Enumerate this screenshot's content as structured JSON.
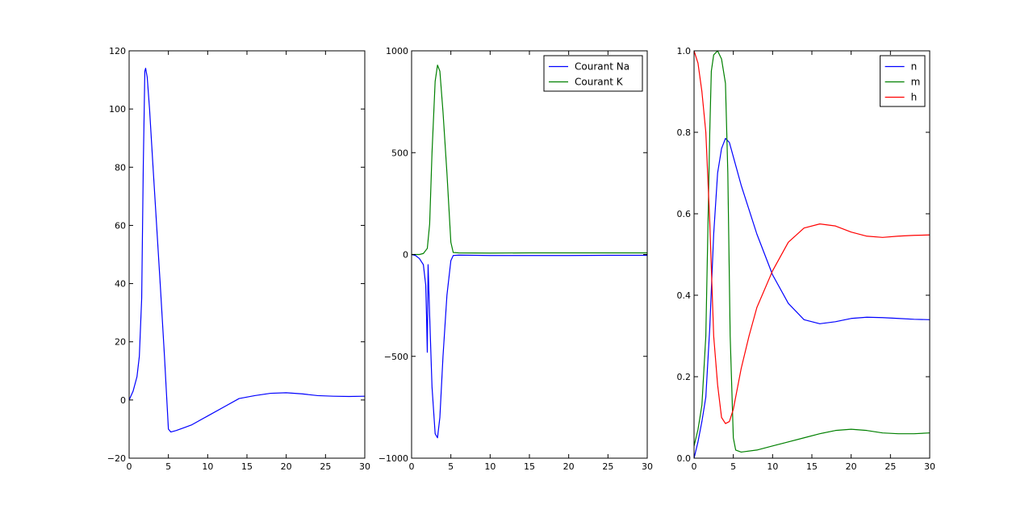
{
  "chart_data": [
    {
      "type": "line",
      "xlim": [
        0,
        30
      ],
      "ylim": [
        -20,
        120
      ],
      "xticks": [
        "0",
        "5",
        "10",
        "15",
        "20",
        "25",
        "30"
      ],
      "yticks": [
        "−20",
        "0",
        "20",
        "40",
        "60",
        "80",
        "100",
        "120"
      ],
      "legend": null,
      "series": [
        {
          "color": "#0000ff",
          "x": [
            0,
            0.5,
            1.0,
            1.3,
            1.6,
            1.8,
            2.0,
            2.1,
            2.3,
            2.6,
            3.0,
            3.5,
            4.0,
            4.5,
            4.8,
            5.0,
            5.3,
            6,
            7,
            8,
            10,
            12,
            14,
            16,
            18,
            20,
            22,
            24,
            26,
            28,
            30
          ],
          "y": [
            0,
            3,
            8,
            15,
            35,
            80,
            113,
            114,
            111,
            100,
            82,
            60,
            38,
            15,
            0,
            -10,
            -11,
            -10.5,
            -9.5,
            -8.5,
            -5.5,
            -2.5,
            0.5,
            1.5,
            2.3,
            2.5,
            2.1,
            1.5,
            1.3,
            1.2,
            1.3
          ]
        }
      ]
    },
    {
      "type": "line",
      "xlim": [
        0,
        30
      ],
      "ylim": [
        -1000,
        1000
      ],
      "xticks": [
        "0",
        "5",
        "10",
        "15",
        "20",
        "25",
        "30"
      ],
      "yticks": [
        "−1000",
        "−500",
        "0",
        "500",
        "1000"
      ],
      "legend": {
        "position": "top-right",
        "entries": [
          "Courant Na",
          "Courant K"
        ]
      },
      "series": [
        {
          "name": "Courant Na",
          "color": "#0000ff",
          "x": [
            0,
            0.5,
            1.0,
            1.5,
            1.8,
            1.9,
            2.0,
            2.1,
            2.3,
            2.6,
            3.0,
            3.3,
            3.6,
            4.0,
            4.5,
            5.0,
            5.3,
            6,
            10,
            15,
            20,
            25,
            30
          ],
          "y": [
            0,
            -5,
            -20,
            -50,
            -150,
            -300,
            -480,
            -50,
            -300,
            -650,
            -880,
            -900,
            -800,
            -500,
            -200,
            -30,
            -5,
            -3,
            -5,
            -5,
            -5,
            -4,
            -4
          ]
        },
        {
          "name": "Courant K",
          "color": "#008000",
          "x": [
            0,
            1,
            1.5,
            2.0,
            2.3,
            2.6,
            3.0,
            3.3,
            3.6,
            4.0,
            4.5,
            5.0,
            5.3,
            6,
            10,
            15,
            20,
            25,
            30
          ],
          "y": [
            0,
            0,
            5,
            30,
            150,
            500,
            850,
            930,
            900,
            700,
            400,
            60,
            10,
            8,
            7,
            8,
            8,
            8,
            8
          ]
        }
      ]
    },
    {
      "type": "line",
      "xlim": [
        0,
        30
      ],
      "ylim": [
        0.0,
        1.0
      ],
      "xticks": [
        "0",
        "5",
        "10",
        "15",
        "20",
        "25",
        "30"
      ],
      "yticks": [
        "0.0",
        "0.2",
        "0.4",
        "0.6",
        "0.8",
        "1.0"
      ],
      "legend": {
        "position": "top-right",
        "entries": [
          "n",
          "m",
          "h"
        ]
      },
      "series": [
        {
          "name": "n",
          "color": "#0000ff",
          "x": [
            0,
            0.5,
            1,
            1.5,
            2,
            2.5,
            3,
            3.5,
            4,
            4.5,
            5,
            6,
            7,
            8,
            10,
            12,
            14,
            16,
            18,
            20,
            22,
            24,
            26,
            28,
            30
          ],
          "y": [
            0.0,
            0.04,
            0.09,
            0.15,
            0.32,
            0.55,
            0.7,
            0.76,
            0.785,
            0.775,
            0.74,
            0.67,
            0.61,
            0.55,
            0.45,
            0.38,
            0.34,
            0.33,
            0.335,
            0.343,
            0.346,
            0.345,
            0.343,
            0.341,
            0.34
          ]
        },
        {
          "name": "m",
          "color": "#008000",
          "x": [
            0,
            0.5,
            1,
            1.5,
            2,
            2.2,
            2.5,
            3,
            3.5,
            4,
            4.3,
            4.6,
            5,
            5.3,
            6,
            8,
            10,
            12,
            14,
            16,
            18,
            20,
            22,
            24,
            26,
            28,
            30
          ],
          "y": [
            0.03,
            0.07,
            0.13,
            0.3,
            0.8,
            0.95,
            0.99,
            1.0,
            0.98,
            0.92,
            0.7,
            0.3,
            0.05,
            0.02,
            0.015,
            0.02,
            0.03,
            0.04,
            0.05,
            0.06,
            0.068,
            0.071,
            0.068,
            0.062,
            0.06,
            0.06,
            0.062
          ]
        },
        {
          "name": "h",
          "color": "#ff0000",
          "x": [
            0,
            0.5,
            1,
            1.5,
            2,
            2.5,
            3,
            3.5,
            4,
            4.5,
            5,
            6,
            7,
            8,
            10,
            12,
            14,
            16,
            18,
            20,
            22,
            24,
            26,
            28,
            30
          ],
          "y": [
            1.0,
            0.97,
            0.9,
            0.8,
            0.58,
            0.3,
            0.18,
            0.1,
            0.085,
            0.09,
            0.12,
            0.22,
            0.3,
            0.37,
            0.46,
            0.53,
            0.565,
            0.575,
            0.57,
            0.555,
            0.545,
            0.542,
            0.545,
            0.547,
            0.548
          ]
        }
      ]
    }
  ]
}
